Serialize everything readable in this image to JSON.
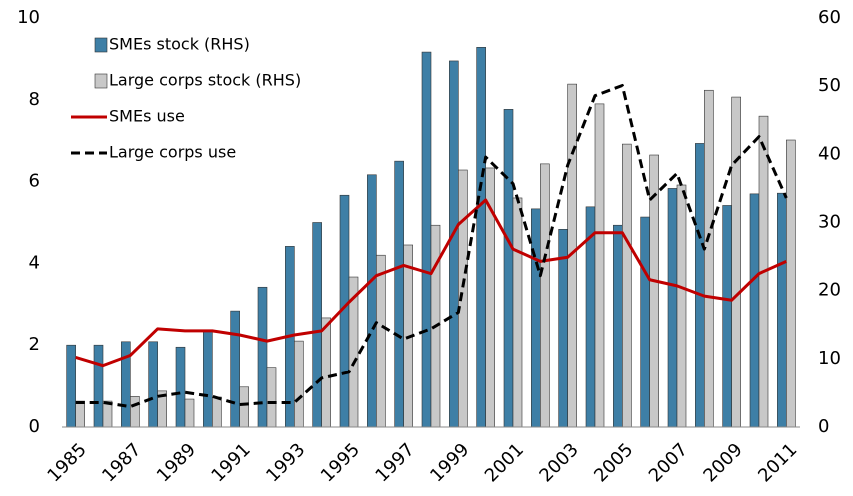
{
  "chart_data": {
    "type": "bar",
    "categories": [
      "1985",
      null,
      "1987",
      null,
      "1989",
      null,
      "1991",
      null,
      "1993",
      null,
      "1995",
      null,
      "1997",
      null,
      "1999",
      null,
      "2001",
      null,
      "2003",
      null,
      "2005",
      null,
      "2007",
      null,
      "2009",
      null,
      "2011"
    ],
    "ylim": [
      0,
      10
    ],
    "yticks": [
      0,
      2,
      4,
      6,
      8,
      10
    ],
    "y2lim": [
      0,
      60
    ],
    "y2ticks": [
      0,
      10,
      20,
      30,
      40,
      50,
      60
    ],
    "grid": false,
    "legend": "upper left",
    "series": [
      {
        "name": "SMEs stock (RHS)",
        "type": "bar",
        "axis": "y2",
        "color": "#3e7fa6",
        "values": [
          12,
          12,
          12.5,
          12.5,
          11.7,
          14,
          17,
          20.5,
          26.5,
          30,
          34,
          37,
          39,
          55,
          53.7,
          55.7,
          46.6,
          32,
          29,
          32.3,
          29.6,
          30.8,
          35,
          41.6,
          32.5,
          34.2,
          34.3
        ]
      },
      {
        "name": "Large corps stock (RHS)",
        "type": "bar",
        "axis": "y2",
        "color": "#c8c8c8",
        "values": [
          3.8,
          3.8,
          4.5,
          5.3,
          4.1,
          4.4,
          5.9,
          8.7,
          12.6,
          16,
          22,
          25.2,
          26.7,
          29.6,
          37.7,
          38,
          33.6,
          38.6,
          50.3,
          47.4,
          41.5,
          39.9,
          35.5,
          49.4,
          48.4,
          45.6,
          42.1
        ]
      },
      {
        "name": "SMEs use",
        "type": "line",
        "color": "#c00000",
        "dashed": false,
        "values": [
          1.7,
          1.5,
          1.75,
          2.4,
          2.35,
          2.35,
          2.25,
          2.1,
          2.25,
          2.35,
          3.05,
          3.7,
          3.95,
          3.75,
          4.95,
          5.55,
          4.35,
          4.05,
          4.15,
          4.75,
          4.75,
          3.6,
          3.45,
          3.2,
          3.1,
          3.75,
          4.05
        ]
      },
      {
        "name": "Large corps use",
        "type": "line",
        "color": "#000000",
        "dashed": true,
        "values": [
          0.6,
          0.6,
          0.5,
          0.75,
          0.85,
          0.75,
          0.55,
          0.6,
          0.6,
          1.2,
          1.35,
          2.55,
          2.15,
          2.4,
          2.8,
          6.6,
          5.95,
          3.7,
          6.4,
          8.1,
          8.35,
          5.55,
          6.2,
          4.35,
          6.4,
          7.1,
          5.6
        ]
      }
    ]
  }
}
